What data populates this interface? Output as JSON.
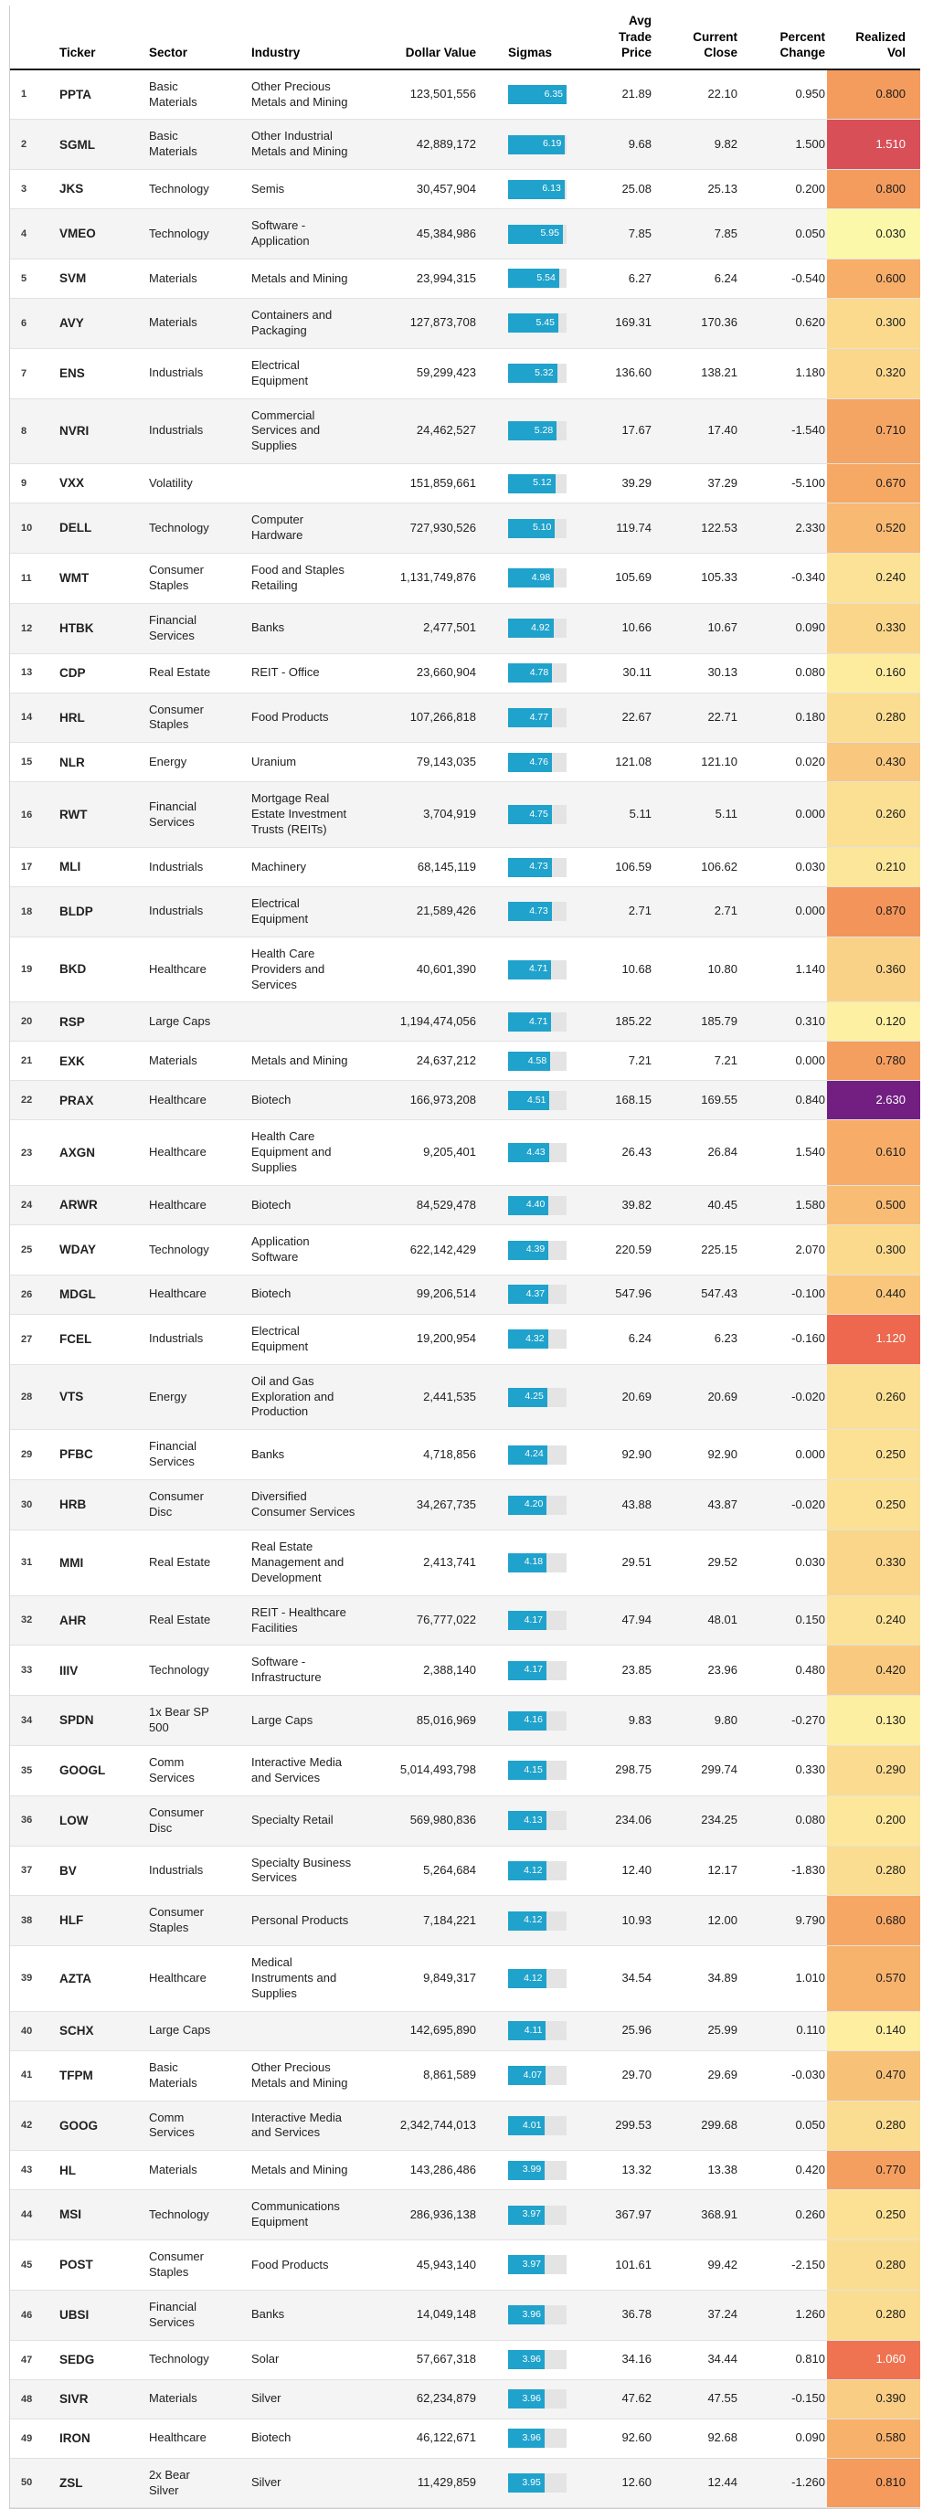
{
  "meta": {
    "bar_color": "#1fa2cb",
    "bar_track_color": "#e4e4e4",
    "stripe_color": "#f4f4f4",
    "sigma_bar_max": 6.35,
    "vol_white_text_threshold": 1.0,
    "vol_heat_stops": [
      [
        0.03,
        "#fbf8a9"
      ],
      [
        0.13,
        "#fdefa1"
      ],
      [
        0.2,
        "#fce79b"
      ],
      [
        0.3,
        "#fbda8e"
      ],
      [
        0.4,
        "#f9cc82"
      ],
      [
        0.5,
        "#f8bc74"
      ],
      [
        0.6,
        "#f7ae69"
      ],
      [
        0.72,
        "#f5a462"
      ],
      [
        0.87,
        "#f3955a"
      ],
      [
        1.0,
        "#f07d53"
      ],
      [
        1.12,
        "#ed684e"
      ],
      [
        1.51,
        "#d94f58"
      ],
      [
        2.0,
        "#a63166"
      ],
      [
        2.63,
        "#721f81"
      ]
    ]
  },
  "header": {
    "rank": "",
    "ticker": "Ticker",
    "sector": "Sector",
    "industry": "Industry",
    "dollar": "Dollar Value",
    "sigmas": "Sigmas",
    "avg": "Avg\nTrade\nPrice",
    "close": "Current\nClose",
    "pct": "Percent\nChange",
    "vol": "Realized\nVol"
  },
  "chart_data": {
    "type": "table",
    "title": "",
    "columns": [
      "#",
      "Ticker",
      "Sector",
      "Industry",
      "Dollar Value",
      "Sigmas",
      "Avg Trade Price",
      "Current Close",
      "Percent Change",
      "Realized Vol"
    ],
    "rows": [
      {
        "n": 1,
        "ticker": "PPTA",
        "sector": "Basic Materials",
        "industry": "Other Precious Metals and Mining",
        "dollar": "123,501,556",
        "sigma": "6.35",
        "avg": "21.89",
        "close": "22.10",
        "pct": "0.950",
        "vol": "0.800"
      },
      {
        "n": 2,
        "ticker": "SGML",
        "sector": "Basic Materials",
        "industry": "Other Industrial Metals and Mining",
        "dollar": "42,889,172",
        "sigma": "6.19",
        "avg": "9.68",
        "close": "9.82",
        "pct": "1.500",
        "vol": "1.510"
      },
      {
        "n": 3,
        "ticker": "JKS",
        "sector": "Technology",
        "industry": "Semis",
        "dollar": "30,457,904",
        "sigma": "6.13",
        "avg": "25.08",
        "close": "25.13",
        "pct": "0.200",
        "vol": "0.800"
      },
      {
        "n": 4,
        "ticker": "VMEO",
        "sector": "Technology",
        "industry": "Software - Application",
        "dollar": "45,384,986",
        "sigma": "5.95",
        "avg": "7.85",
        "close": "7.85",
        "pct": "0.050",
        "vol": "0.030"
      },
      {
        "n": 5,
        "ticker": "SVM",
        "sector": "Materials",
        "industry": "Metals and Mining",
        "dollar": "23,994,315",
        "sigma": "5.54",
        "avg": "6.27",
        "close": "6.24",
        "pct": "-0.540",
        "vol": "0.600"
      },
      {
        "n": 6,
        "ticker": "AVY",
        "sector": "Materials",
        "industry": "Containers and Packaging",
        "dollar": "127,873,708",
        "sigma": "5.45",
        "avg": "169.31",
        "close": "170.36",
        "pct": "0.620",
        "vol": "0.300"
      },
      {
        "n": 7,
        "ticker": "ENS",
        "sector": "Industrials",
        "industry": "Electrical Equipment",
        "dollar": "59,299,423",
        "sigma": "5.32",
        "avg": "136.60",
        "close": "138.21",
        "pct": "1.180",
        "vol": "0.320"
      },
      {
        "n": 8,
        "ticker": "NVRI",
        "sector": "Industrials",
        "industry": "Commercial Services and Supplies",
        "dollar": "24,462,527",
        "sigma": "5.28",
        "avg": "17.67",
        "close": "17.40",
        "pct": "-1.540",
        "vol": "0.710"
      },
      {
        "n": 9,
        "ticker": "VXX",
        "sector": "Volatility",
        "industry": "",
        "dollar": "151,859,661",
        "sigma": "5.12",
        "avg": "39.29",
        "close": "37.29",
        "pct": "-5.100",
        "vol": "0.670"
      },
      {
        "n": 10,
        "ticker": "DELL",
        "sector": "Technology",
        "industry": "Computer Hardware",
        "dollar": "727,930,526",
        "sigma": "5.10",
        "avg": "119.74",
        "close": "122.53",
        "pct": "2.330",
        "vol": "0.520"
      },
      {
        "n": 11,
        "ticker": "WMT",
        "sector": "Consumer Staples",
        "industry": "Food and Staples Retailing",
        "dollar": "1,131,749,876",
        "sigma": "4.98",
        "avg": "105.69",
        "close": "105.33",
        "pct": "-0.340",
        "vol": "0.240"
      },
      {
        "n": 12,
        "ticker": "HTBK",
        "sector": "Financial Services",
        "industry": "Banks",
        "dollar": "2,477,501",
        "sigma": "4.92",
        "avg": "10.66",
        "close": "10.67",
        "pct": "0.090",
        "vol": "0.330"
      },
      {
        "n": 13,
        "ticker": "CDP",
        "sector": "Real Estate",
        "industry": "REIT - Office",
        "dollar": "23,660,904",
        "sigma": "4.78",
        "avg": "30.11",
        "close": "30.13",
        "pct": "0.080",
        "vol": "0.160"
      },
      {
        "n": 14,
        "ticker": "HRL",
        "sector": "Consumer Staples",
        "industry": "Food Products",
        "dollar": "107,266,818",
        "sigma": "4.77",
        "avg": "22.67",
        "close": "22.71",
        "pct": "0.180",
        "vol": "0.280"
      },
      {
        "n": 15,
        "ticker": "NLR",
        "sector": "Energy",
        "industry": "Uranium",
        "dollar": "79,143,035",
        "sigma": "4.76",
        "avg": "121.08",
        "close": "121.10",
        "pct": "0.020",
        "vol": "0.430"
      },
      {
        "n": 16,
        "ticker": "RWT",
        "sector": "Financial Services",
        "industry": "Mortgage Real Estate Investment Trusts (REITs)",
        "dollar": "3,704,919",
        "sigma": "4.75",
        "avg": "5.11",
        "close": "5.11",
        "pct": "0.000",
        "vol": "0.260"
      },
      {
        "n": 17,
        "ticker": "MLI",
        "sector": "Industrials",
        "industry": "Machinery",
        "dollar": "68,145,119",
        "sigma": "4.73",
        "avg": "106.59",
        "close": "106.62",
        "pct": "0.030",
        "vol": "0.210"
      },
      {
        "n": 18,
        "ticker": "BLDP",
        "sector": "Industrials",
        "industry": "Electrical Equipment",
        "dollar": "21,589,426",
        "sigma": "4.73",
        "avg": "2.71",
        "close": "2.71",
        "pct": "0.000",
        "vol": "0.870"
      },
      {
        "n": 19,
        "ticker": "BKD",
        "sector": "Healthcare",
        "industry": "Health Care Providers and Services",
        "dollar": "40,601,390",
        "sigma": "4.71",
        "avg": "10.68",
        "close": "10.80",
        "pct": "1.140",
        "vol": "0.360"
      },
      {
        "n": 20,
        "ticker": "RSP",
        "sector": "Large Caps",
        "industry": "",
        "dollar": "1,194,474,056",
        "sigma": "4.71",
        "avg": "185.22",
        "close": "185.79",
        "pct": "0.310",
        "vol": "0.120"
      },
      {
        "n": 21,
        "ticker": "EXK",
        "sector": "Materials",
        "industry": "Metals and Mining",
        "dollar": "24,637,212",
        "sigma": "4.58",
        "avg": "7.21",
        "close": "7.21",
        "pct": "0.000",
        "vol": "0.780"
      },
      {
        "n": 22,
        "ticker": "PRAX",
        "sector": "Healthcare",
        "industry": "Biotech",
        "dollar": "166,973,208",
        "sigma": "4.51",
        "avg": "168.15",
        "close": "169.55",
        "pct": "0.840",
        "vol": "2.630"
      },
      {
        "n": 23,
        "ticker": "AXGN",
        "sector": "Healthcare",
        "industry": "Health Care Equipment and Supplies",
        "dollar": "9,205,401",
        "sigma": "4.43",
        "avg": "26.43",
        "close": "26.84",
        "pct": "1.540",
        "vol": "0.610"
      },
      {
        "n": 24,
        "ticker": "ARWR",
        "sector": "Healthcare",
        "industry": "Biotech",
        "dollar": "84,529,478",
        "sigma": "4.40",
        "avg": "39.82",
        "close": "40.45",
        "pct": "1.580",
        "vol": "0.500"
      },
      {
        "n": 25,
        "ticker": "WDAY",
        "sector": "Technology",
        "industry": "Application Software",
        "dollar": "622,142,429",
        "sigma": "4.39",
        "avg": "220.59",
        "close": "225.15",
        "pct": "2.070",
        "vol": "0.300"
      },
      {
        "n": 26,
        "ticker": "MDGL",
        "sector": "Healthcare",
        "industry": "Biotech",
        "dollar": "99,206,514",
        "sigma": "4.37",
        "avg": "547.96",
        "close": "547.43",
        "pct": "-0.100",
        "vol": "0.440"
      },
      {
        "n": 27,
        "ticker": "FCEL",
        "sector": "Industrials",
        "industry": "Electrical Equipment",
        "dollar": "19,200,954",
        "sigma": "4.32",
        "avg": "6.24",
        "close": "6.23",
        "pct": "-0.160",
        "vol": "1.120"
      },
      {
        "n": 28,
        "ticker": "VTS",
        "sector": "Energy",
        "industry": "Oil and Gas Exploration and Production",
        "dollar": "2,441,535",
        "sigma": "4.25",
        "avg": "20.69",
        "close": "20.69",
        "pct": "-0.020",
        "vol": "0.260"
      },
      {
        "n": 29,
        "ticker": "PFBC",
        "sector": "Financial Services",
        "industry": "Banks",
        "dollar": "4,718,856",
        "sigma": "4.24",
        "avg": "92.90",
        "close": "92.90",
        "pct": "0.000",
        "vol": "0.250"
      },
      {
        "n": 30,
        "ticker": "HRB",
        "sector": "Consumer Disc",
        "industry": "Diversified Consumer Services",
        "dollar": "34,267,735",
        "sigma": "4.20",
        "avg": "43.88",
        "close": "43.87",
        "pct": "-0.020",
        "vol": "0.250"
      },
      {
        "n": 31,
        "ticker": "MMI",
        "sector": "Real Estate",
        "industry": "Real Estate Management and Development",
        "dollar": "2,413,741",
        "sigma": "4.18",
        "avg": "29.51",
        "close": "29.52",
        "pct": "0.030",
        "vol": "0.330"
      },
      {
        "n": 32,
        "ticker": "AHR",
        "sector": "Real Estate",
        "industry": "REIT - Healthcare Facilities",
        "dollar": "76,777,022",
        "sigma": "4.17",
        "avg": "47.94",
        "close": "48.01",
        "pct": "0.150",
        "vol": "0.240"
      },
      {
        "n": 33,
        "ticker": "IIIV",
        "sector": "Technology",
        "industry": "Software - Infrastructure",
        "dollar": "2,388,140",
        "sigma": "4.17",
        "avg": "23.85",
        "close": "23.96",
        "pct": "0.480",
        "vol": "0.420"
      },
      {
        "n": 34,
        "ticker": "SPDN",
        "sector": "1x Bear SP 500",
        "industry": "Large Caps",
        "dollar": "85,016,969",
        "sigma": "4.16",
        "avg": "9.83",
        "close": "9.80",
        "pct": "-0.270",
        "vol": "0.130"
      },
      {
        "n": 35,
        "ticker": "GOOGL",
        "sector": "Comm Services",
        "industry": "Interactive Media and Services",
        "dollar": "5,014,493,798",
        "sigma": "4.15",
        "avg": "298.75",
        "close": "299.74",
        "pct": "0.330",
        "vol": "0.290"
      },
      {
        "n": 36,
        "ticker": "LOW",
        "sector": "Consumer Disc",
        "industry": "Specialty Retail",
        "dollar": "569,980,836",
        "sigma": "4.13",
        "avg": "234.06",
        "close": "234.25",
        "pct": "0.080",
        "vol": "0.200"
      },
      {
        "n": 37,
        "ticker": "BV",
        "sector": "Industrials",
        "industry": "Specialty Business Services",
        "dollar": "5,264,684",
        "sigma": "4.12",
        "avg": "12.40",
        "close": "12.17",
        "pct": "-1.830",
        "vol": "0.280"
      },
      {
        "n": 38,
        "ticker": "HLF",
        "sector": "Consumer Staples",
        "industry": "Personal Products",
        "dollar": "7,184,221",
        "sigma": "4.12",
        "avg": "10.93",
        "close": "12.00",
        "pct": "9.790",
        "vol": "0.680"
      },
      {
        "n": 39,
        "ticker": "AZTA",
        "sector": "Healthcare",
        "industry": "Medical Instruments and Supplies",
        "dollar": "9,849,317",
        "sigma": "4.12",
        "avg": "34.54",
        "close": "34.89",
        "pct": "1.010",
        "vol": "0.570"
      },
      {
        "n": 40,
        "ticker": "SCHX",
        "sector": "Large Caps",
        "industry": "",
        "dollar": "142,695,890",
        "sigma": "4.11",
        "avg": "25.96",
        "close": "25.99",
        "pct": "0.110",
        "vol": "0.140"
      },
      {
        "n": 41,
        "ticker": "TFPM",
        "sector": "Basic Materials",
        "industry": "Other Precious Metals and Mining",
        "dollar": "8,861,589",
        "sigma": "4.07",
        "avg": "29.70",
        "close": "29.69",
        "pct": "-0.030",
        "vol": "0.470"
      },
      {
        "n": 42,
        "ticker": "GOOG",
        "sector": "Comm Services",
        "industry": "Interactive Media and Services",
        "dollar": "2,342,744,013",
        "sigma": "4.01",
        "avg": "299.53",
        "close": "299.68",
        "pct": "0.050",
        "vol": "0.280"
      },
      {
        "n": 43,
        "ticker": "HL",
        "sector": "Materials",
        "industry": "Metals and Mining",
        "dollar": "143,286,486",
        "sigma": "3.99",
        "avg": "13.32",
        "close": "13.38",
        "pct": "0.420",
        "vol": "0.770"
      },
      {
        "n": 44,
        "ticker": "MSI",
        "sector": "Technology",
        "industry": "Communications Equipment",
        "dollar": "286,936,138",
        "sigma": "3.97",
        "avg": "367.97",
        "close": "368.91",
        "pct": "0.260",
        "vol": "0.250"
      },
      {
        "n": 45,
        "ticker": "POST",
        "sector": "Consumer Staples",
        "industry": "Food Products",
        "dollar": "45,943,140",
        "sigma": "3.97",
        "avg": "101.61",
        "close": "99.42",
        "pct": "-2.150",
        "vol": "0.280"
      },
      {
        "n": 46,
        "ticker": "UBSI",
        "sector": "Financial Services",
        "industry": "Banks",
        "dollar": "14,049,148",
        "sigma": "3.96",
        "avg": "36.78",
        "close": "37.24",
        "pct": "1.260",
        "vol": "0.280"
      },
      {
        "n": 47,
        "ticker": "SEDG",
        "sector": "Technology",
        "industry": "Solar",
        "dollar": "57,667,318",
        "sigma": "3.96",
        "avg": "34.16",
        "close": "34.44",
        "pct": "0.810",
        "vol": "1.060"
      },
      {
        "n": 48,
        "ticker": "SIVR",
        "sector": "Materials",
        "industry": "Silver",
        "dollar": "62,234,879",
        "sigma": "3.96",
        "avg": "47.62",
        "close": "47.55",
        "pct": "-0.150",
        "vol": "0.390"
      },
      {
        "n": 49,
        "ticker": "IRON",
        "sector": "Healthcare",
        "industry": "Biotech",
        "dollar": "46,122,671",
        "sigma": "3.96",
        "avg": "92.60",
        "close": "92.68",
        "pct": "0.090",
        "vol": "0.580"
      },
      {
        "n": 50,
        "ticker": "ZSL",
        "sector": "2x Bear Silver",
        "industry": "Silver",
        "dollar": "11,429,859",
        "sigma": "3.95",
        "avg": "12.60",
        "close": "12.44",
        "pct": "-1.260",
        "vol": "0.810"
      }
    ]
  }
}
